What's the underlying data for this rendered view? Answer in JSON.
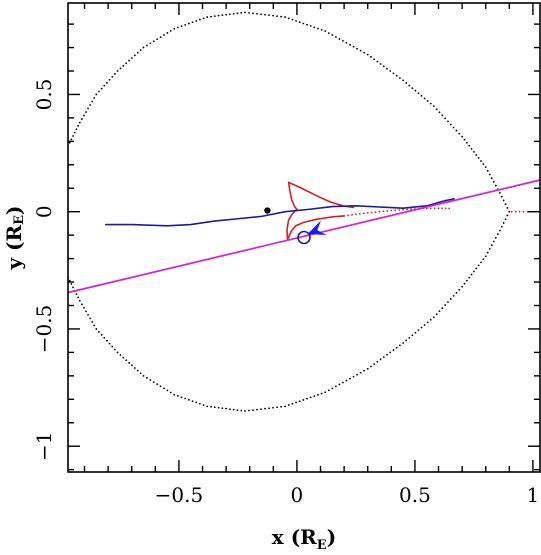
{
  "chart_data": {
    "type": "line",
    "title": "",
    "xlabel": "x",
    "xlabel_unit": "R",
    "xlabel_unit_sub": "E",
    "ylabel": "y",
    "ylabel_unit": "R",
    "ylabel_unit_sub": "E",
    "xlim": [
      -0.97,
      1.03
    ],
    "ylim": [
      -1.11,
      0.89
    ],
    "x_ticks": [
      -0.5,
      0,
      0.5,
      1
    ],
    "x_tick_labels": [
      "−0.5",
      "0",
      "0.5",
      "1"
    ],
    "y_ticks": [
      -1,
      -0.5,
      0,
      0.5
    ],
    "y_tick_labels": [
      "−1",
      "−0.5",
      "0",
      "0.5"
    ],
    "grid": false,
    "legend": "none",
    "colors": {
      "critical_curve": "#000000",
      "caustic": "#d42020",
      "source_track": "#1a1aa6",
      "lens_axis": "#d22ad2",
      "arrow": "#1a1aff"
    },
    "series": [
      {
        "kind": "critical-curve",
        "style": "dotted",
        "points": [
          [
            -0.97,
            -0.28
          ],
          [
            -0.92,
            -0.38
          ],
          [
            -0.85,
            -0.5
          ],
          [
            -0.76,
            -0.6
          ],
          [
            -0.65,
            -0.7
          ],
          [
            -0.52,
            -0.78
          ],
          [
            -0.38,
            -0.83
          ],
          [
            -0.22,
            -0.85
          ],
          [
            -0.05,
            -0.83
          ],
          [
            0.12,
            -0.77
          ],
          [
            0.3,
            -0.67
          ],
          [
            0.45,
            -0.56
          ],
          [
            0.58,
            -0.45
          ],
          [
            0.7,
            -0.32
          ],
          [
            0.8,
            -0.19
          ],
          [
            0.86,
            -0.08
          ],
          [
            0.9,
            0
          ],
          [
            0.86,
            0.08
          ],
          [
            0.8,
            0.19
          ],
          [
            0.7,
            0.32
          ],
          [
            0.58,
            0.45
          ],
          [
            0.45,
            0.56
          ],
          [
            0.3,
            0.67
          ],
          [
            0.12,
            0.77
          ],
          [
            -0.05,
            0.83
          ],
          [
            -0.22,
            0.85
          ],
          [
            -0.38,
            0.83
          ],
          [
            -0.52,
            0.78
          ],
          [
            -0.65,
            0.7
          ],
          [
            -0.76,
            0.6
          ],
          [
            -0.85,
            0.5
          ],
          [
            -0.92,
            0.38
          ],
          [
            -0.97,
            0.28
          ]
        ]
      },
      {
        "kind": "caustic-upper-cusp",
        "style": "solid",
        "points": [
          [
            -0.035,
            0.125
          ],
          [
            -0.03,
            0.09
          ],
          [
            -0.022,
            0.05
          ],
          [
            -0.01,
            0.022
          ],
          [
            0.0,
            0.01
          ]
        ]
      },
      {
        "kind": "caustic-upper-fold",
        "style": "solid",
        "points": [
          [
            -0.035,
            0.125
          ],
          [
            0.02,
            0.1
          ],
          [
            0.08,
            0.07
          ],
          [
            0.14,
            0.042
          ],
          [
            0.2,
            0.024
          ],
          [
            0.24,
            0.018
          ]
        ]
      },
      {
        "kind": "caustic-lower-cusp",
        "style": "solid",
        "points": [
          [
            0.0,
            0.01
          ],
          [
            -0.02,
            -0.01
          ],
          [
            -0.035,
            -0.035
          ],
          [
            -0.042,
            -0.075
          ],
          [
            -0.04,
            -0.12
          ]
        ]
      },
      {
        "kind": "caustic-lower-fold",
        "style": "solid",
        "points": [
          [
            -0.04,
            -0.12
          ],
          [
            -0.025,
            -0.085
          ],
          [
            -0.005,
            -0.06
          ],
          [
            0.03,
            -0.045
          ],
          [
            0.08,
            -0.033
          ],
          [
            0.15,
            -0.022
          ],
          [
            0.2,
            -0.018
          ]
        ]
      },
      {
        "kind": "caustic-tail",
        "style": "dotted",
        "points": [
          [
            0.2,
            -0.018
          ],
          [
            0.3,
            -0.005
          ],
          [
            0.4,
            0.005
          ],
          [
            0.5,
            0.012
          ],
          [
            0.6,
            0.015
          ],
          [
            0.66,
            0.013
          ]
        ]
      },
      {
        "kind": "caustic-right",
        "style": "dotted",
        "points": [
          [
            0.91,
            0.0
          ],
          [
            0.96,
            0.0
          ],
          [
            1.03,
            0.0
          ]
        ]
      },
      {
        "kind": "source-track",
        "style": "solid",
        "points": [
          [
            -0.81,
            -0.055
          ],
          [
            -0.7,
            -0.055
          ],
          [
            -0.55,
            -0.06
          ],
          [
            -0.45,
            -0.055
          ],
          [
            -0.35,
            -0.04
          ],
          [
            -0.25,
            -0.03
          ],
          [
            -0.15,
            -0.02
          ],
          [
            -0.05,
            0.0
          ],
          [
            0.05,
            0.01
          ],
          [
            0.15,
            0.022
          ],
          [
            0.25,
            0.025
          ],
          [
            0.35,
            0.02
          ],
          [
            0.45,
            0.015
          ],
          [
            0.55,
            0.025
          ],
          [
            0.62,
            0.045
          ],
          [
            0.665,
            0.055
          ]
        ]
      },
      {
        "kind": "lens-axis",
        "style": "solid",
        "points": [
          [
            -0.97,
            -0.345
          ],
          [
            1.03,
            0.135
          ]
        ]
      }
    ],
    "markers": [
      {
        "kind": "filled-dot",
        "x": -0.125,
        "y": 0.005
      },
      {
        "kind": "open-circle",
        "x": 0.03,
        "y": -0.11
      },
      {
        "kind": "arrowhead",
        "x": 0.045,
        "y": -0.095,
        "toward_x": 0.11,
        "toward_y": -0.07
      }
    ]
  }
}
